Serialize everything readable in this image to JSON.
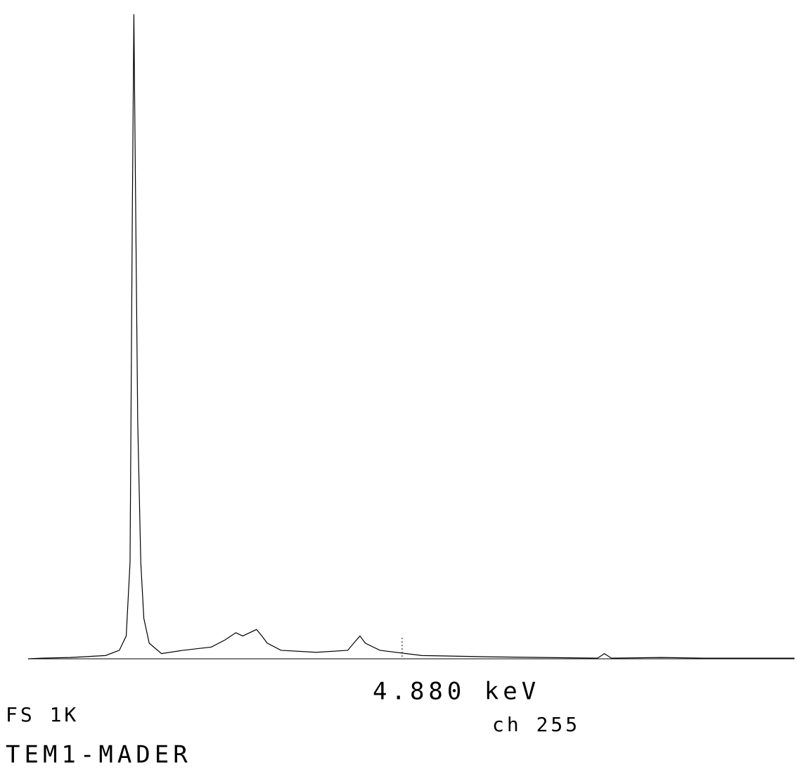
{
  "chart_data": {
    "type": "line",
    "x": [
      0.0,
      0.18,
      0.55,
      1.01,
      1.19,
      1.28,
      1.33,
      1.36,
      1.38,
      1.4,
      1.43,
      1.47,
      1.51,
      1.58,
      1.74,
      2.02,
      2.39,
      2.57,
      2.71,
      2.8,
      2.89,
      2.98,
      3.05,
      3.12,
      3.3,
      3.76,
      4.17,
      4.27,
      4.33,
      4.4,
      4.59,
      5.14,
      6.06,
      7.43,
      7.52,
      7.61,
      8.26,
      8.81,
      10.0
    ],
    "series": [
      {
        "color": "#000000",
        "values": [
          0,
          1,
          2,
          5,
          13,
          35,
          148,
          687,
          989,
          734,
          364,
          148,
          62,
          24,
          8,
          13,
          18,
          29,
          40,
          35,
          40,
          45,
          35,
          24,
          13,
          10,
          13,
          27,
          35,
          24,
          13,
          5,
          3,
          1,
          8,
          1,
          2,
          1,
          1
        ]
      }
    ],
    "xlim": [
      0,
      10
    ],
    "ylim": [
      0,
      1000
    ],
    "cursor": {
      "value": 4.88,
      "label": "4.880 keV"
    },
    "full_scale": "FS 1K",
    "channel": "ch 255",
    "sample": "TEM1-MADER"
  }
}
